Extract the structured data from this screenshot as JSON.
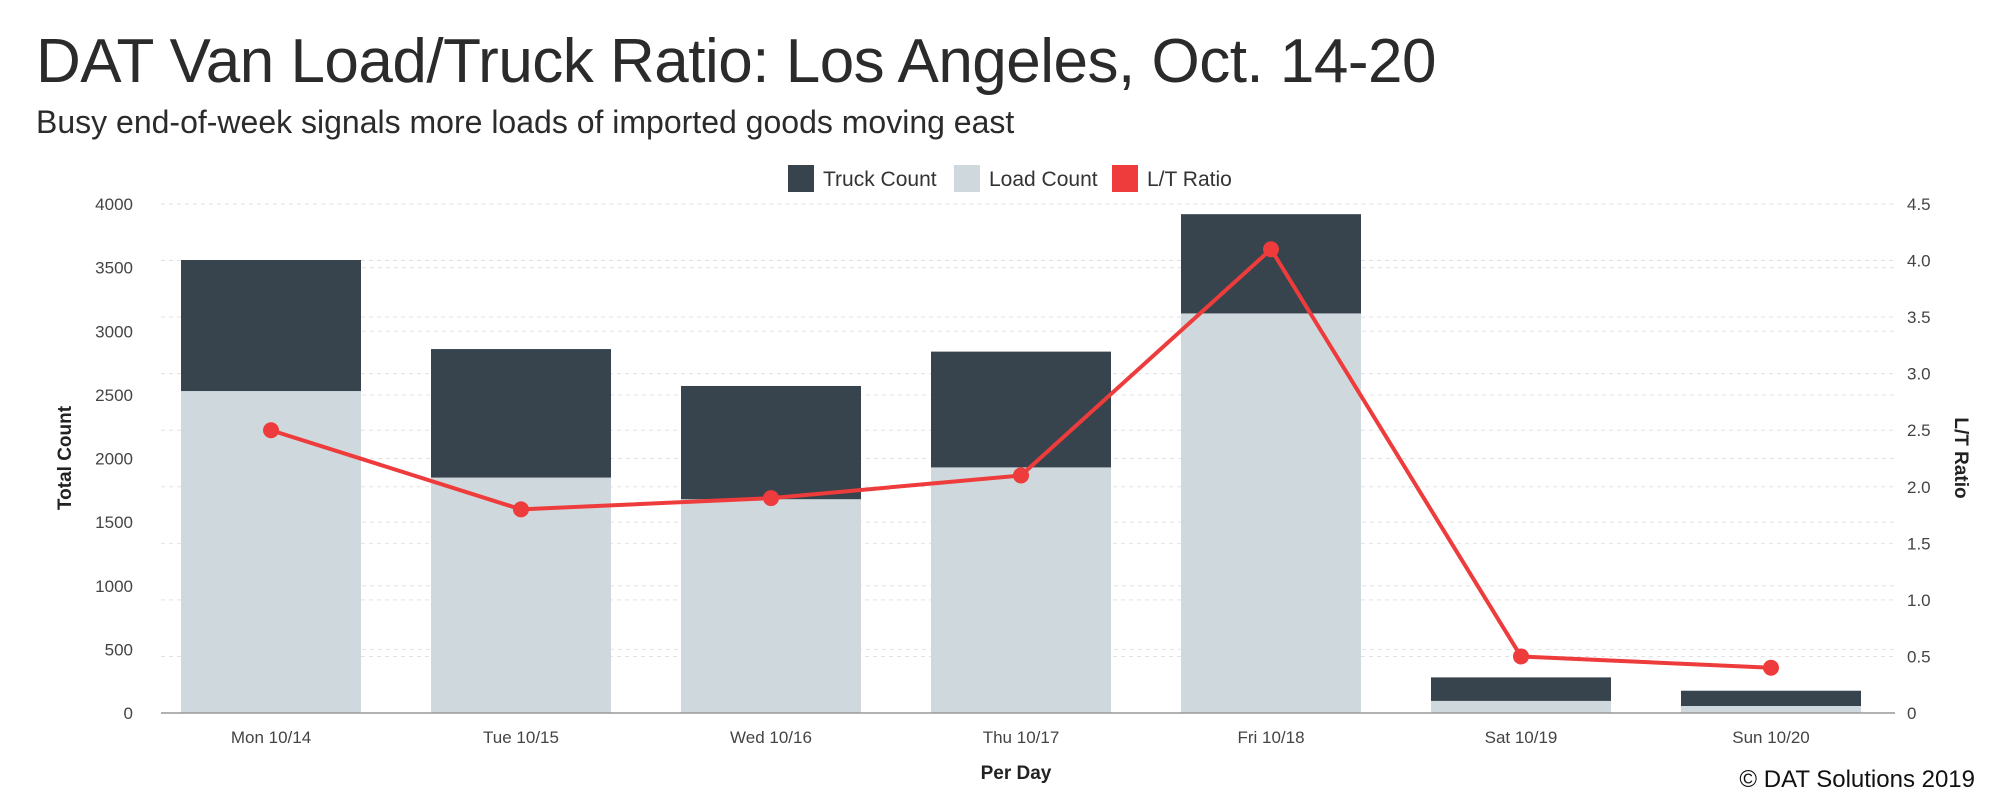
{
  "title": "DAT Van Load/Truck Ratio: Los Angeles, Oct. 14-20",
  "subtitle": "Busy end-of-week signals more loads of imported goods moving east",
  "copyright": "© DAT Solutions 2019",
  "chart_data": {
    "type": "bar",
    "stacked": true,
    "categories": [
      "Mon 10/14",
      "Tue 10/15",
      "Wed 10/16",
      "Thu 10/17",
      "Fri 10/18",
      "Sat 10/19",
      "Sun 10/20"
    ],
    "series": [
      {
        "name": "Truck Count",
        "type": "bar",
        "axis": "left",
        "color": "#37444d",
        "values": [
          1030,
          1010,
          890,
          910,
          780,
          185,
          120
        ]
      },
      {
        "name": "Load Count",
        "type": "bar",
        "axis": "left",
        "color": "#cfd8dd",
        "values": [
          2530,
          1850,
          1680,
          1930,
          3140,
          95,
          55
        ]
      },
      {
        "name": "L/T Ratio",
        "type": "line",
        "axis": "right",
        "color": "#ee3b3b",
        "values": [
          2.5,
          1.8,
          1.9,
          2.1,
          4.1,
          0.5,
          0.4
        ]
      }
    ],
    "xlabel": "Per Day",
    "ylabel": "Total Count",
    "y2label": "L/T Ratio",
    "ylim": [
      0,
      4000
    ],
    "y2lim": [
      0,
      4.5
    ],
    "yticks": [
      "0",
      "500",
      "1000",
      "1500",
      "2000",
      "2500",
      "3000",
      "3500",
      "4000"
    ],
    "y2ticks": [
      "0",
      "0.5",
      "1.0",
      "1.5",
      "2.0",
      "2.5",
      "3.0",
      "3.5",
      "4.0",
      "4.5"
    ],
    "grid": true,
    "legend": "top-center"
  }
}
